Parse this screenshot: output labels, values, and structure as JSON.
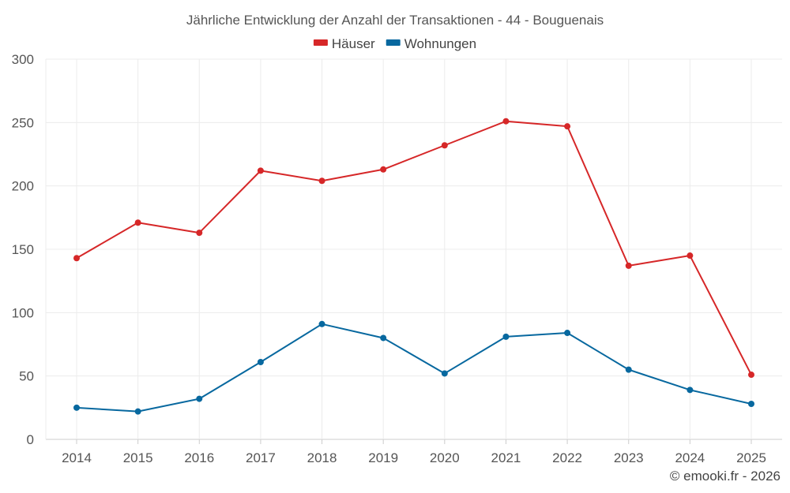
{
  "chart_data": {
    "type": "line",
    "title": "Jährliche Entwicklung der Anzahl der Transaktionen - 44 - Bouguenais",
    "categories": [
      "2014",
      "2015",
      "2016",
      "2017",
      "2018",
      "2019",
      "2020",
      "2021",
      "2022",
      "2023",
      "2024",
      "2025"
    ],
    "series": [
      {
        "name": "Häuser",
        "color": "#d62728",
        "values": [
          143,
          171,
          163,
          212,
          204,
          213,
          232,
          251,
          247,
          137,
          145,
          51
        ]
      },
      {
        "name": "Wohnungen",
        "color": "#07689f",
        "values": [
          25,
          22,
          32,
          61,
          91,
          80,
          52,
          81,
          84,
          55,
          39,
          28
        ]
      }
    ],
    "xlabel": "",
    "ylabel": "",
    "ylim": [
      0,
      300
    ],
    "yticks": [
      0,
      50,
      100,
      150,
      200,
      250,
      300
    ],
    "grid": true,
    "legend": "top-center"
  },
  "footer": {
    "credit": "© emooki.fr - 2026"
  }
}
